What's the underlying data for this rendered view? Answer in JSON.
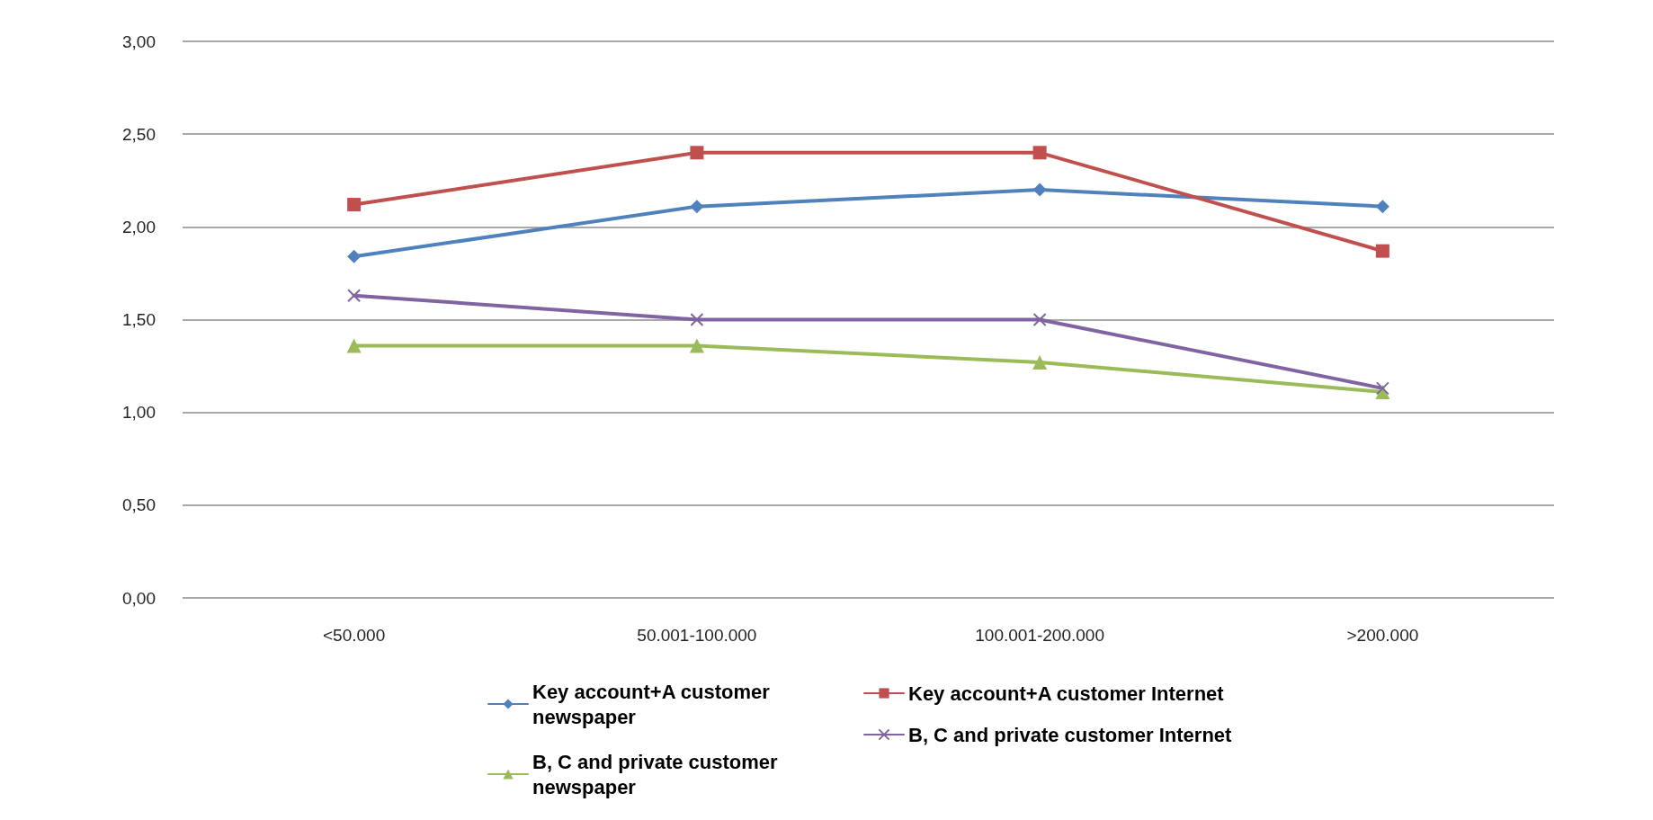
{
  "chart_data": {
    "type": "line",
    "categories": [
      "<50.000",
      "50.001-100.000",
      "100.001-200.000",
      ">200.000"
    ],
    "series": [
      {
        "name": "Key account+A customer newspaper",
        "color": "#4f81bd",
        "marker": "diamond",
        "values": [
          1.84,
          2.11,
          2.2,
          2.11
        ]
      },
      {
        "name": "Key account+A customer Internet",
        "color": "#c0504d",
        "marker": "square",
        "values": [
          2.12,
          2.4,
          2.4,
          1.87
        ]
      },
      {
        "name": "B, C and private customer newspaper",
        "color": "#9bbb59",
        "marker": "triangle",
        "values": [
          1.36,
          1.36,
          1.27,
          1.11
        ]
      },
      {
        "name": "B, C and private customer Internet",
        "color": "#8064a2",
        "marker": "cross",
        "values": [
          1.63,
          1.5,
          1.5,
          1.13
        ]
      }
    ],
    "ylim": [
      0,
      3
    ],
    "yticks": [
      {
        "value": 0,
        "label": "0,00"
      },
      {
        "value": 0.5,
        "label": "0,50"
      },
      {
        "value": 1,
        "label": "1,00"
      },
      {
        "value": 1.5,
        "label": "1,50"
      },
      {
        "value": 2,
        "label": "2,00"
      },
      {
        "value": 2.5,
        "label": "2,50"
      },
      {
        "value": 3,
        "label": "3,00"
      }
    ],
    "grid": "y",
    "legend": "bottom",
    "line_style": "solid"
  }
}
